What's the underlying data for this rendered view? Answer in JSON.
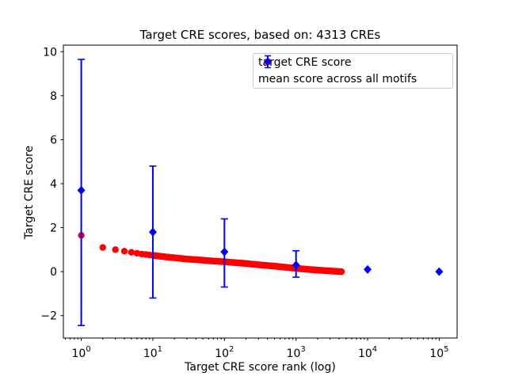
{
  "chart_data": {
    "type": "scatter",
    "title": "Target CRE scores, based on: 4313 CREs",
    "xlabel": "Target CRE score rank (log)",
    "ylabel": "Target CRE score",
    "x_scale": "log",
    "xlim_log10": [
      -0.25,
      5.25
    ],
    "ylim": [
      -3.02,
      10.3
    ],
    "x_ticks": [
      {
        "base": "10",
        "exp": "0"
      },
      {
        "base": "10",
        "exp": "1"
      },
      {
        "base": "10",
        "exp": "2"
      },
      {
        "base": "10",
        "exp": "3"
      },
      {
        "base": "10",
        "exp": "4"
      },
      {
        "base": "10",
        "exp": "5"
      }
    ],
    "y_ticks": [
      {
        "value": -2,
        "label": "−2"
      },
      {
        "value": 0,
        "label": "0"
      },
      {
        "value": 2,
        "label": "2"
      },
      {
        "value": 4,
        "label": "4"
      },
      {
        "value": 6,
        "label": "6"
      },
      {
        "value": 8,
        "label": "8"
      },
      {
        "value": 10,
        "label": "10"
      }
    ],
    "grid": false,
    "legend_position": "upper right",
    "n_cres": 4313,
    "series": [
      {
        "name": "target CRE score",
        "color": "#ff0000",
        "marker": "circle",
        "n_points": 4313,
        "rank_range": [
          1,
          4313
        ],
        "anchors": [
          [
            1,
            1.65
          ],
          [
            2,
            1.1
          ],
          [
            3,
            1.0
          ],
          [
            4,
            0.93
          ],
          [
            5,
            0.88
          ],
          [
            7,
            0.8
          ],
          [
            10,
            0.74
          ],
          [
            15,
            0.67
          ],
          [
            20,
            0.63
          ],
          [
            30,
            0.57
          ],
          [
            50,
            0.52
          ],
          [
            70,
            0.48
          ],
          [
            100,
            0.45
          ],
          [
            150,
            0.4
          ],
          [
            200,
            0.37
          ],
          [
            300,
            0.31
          ],
          [
            500,
            0.25
          ],
          [
            700,
            0.2
          ],
          [
            1000,
            0.15
          ],
          [
            1500,
            0.1
          ],
          [
            2000,
            0.07
          ],
          [
            3000,
            0.03
          ],
          [
            4313,
            0.0
          ]
        ]
      },
      {
        "name": "mean score across all motifs",
        "color": "#0000ff",
        "marker": "diamond",
        "points": [
          {
            "rank": 1,
            "mean": 3.7,
            "lo": -2.45,
            "hi": 9.65
          },
          {
            "rank": 10,
            "mean": 1.8,
            "lo": -1.2,
            "hi": 4.8
          },
          {
            "rank": 100,
            "mean": 0.9,
            "lo": -0.7,
            "hi": 2.4
          },
          {
            "rank": 1000,
            "mean": 0.3,
            "lo": -0.25,
            "hi": 0.95
          },
          {
            "rank": 10000,
            "mean": 0.1,
            "lo": null,
            "hi": null
          },
          {
            "rank": 100000,
            "mean": 0.0,
            "lo": null,
            "hi": null
          }
        ]
      }
    ]
  }
}
